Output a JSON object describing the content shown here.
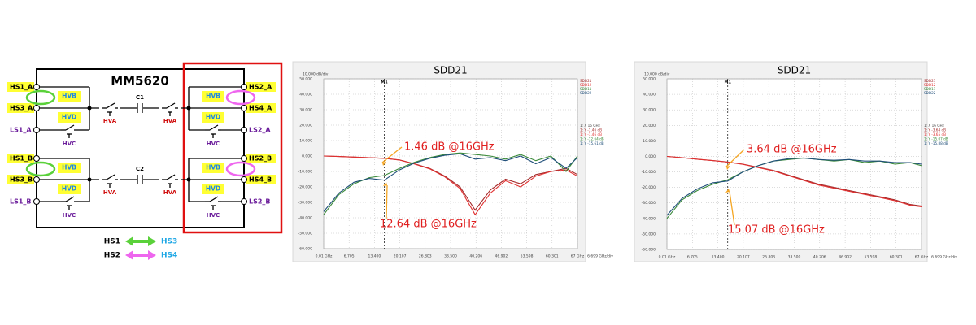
{
  "diagram": {
    "title": "MM5620",
    "left_pins": [
      "HS1_A",
      "HS3_A",
      "LS1_A",
      "HS1_B",
      "HS3_B",
      "LS1_B"
    ],
    "right_pins": [
      "HS2_A",
      "HS4_A",
      "LS2_A",
      "HS2_B",
      "HS4_B",
      "LS2_B"
    ],
    "hvb": [
      "HVB",
      "HVB",
      "HVB",
      "HVB"
    ],
    "hvd": [
      "HVD",
      "HVD",
      "HVD",
      "HVD"
    ],
    "hva": [
      "HVA",
      "HVA",
      "HVA",
      "HVA"
    ],
    "hvc": [
      "HVC",
      "HVC",
      "HVC",
      "HVC"
    ],
    "capacitors": [
      "C1",
      "C2"
    ],
    "legend": [
      {
        "from": "HS1",
        "to": "HS3"
      },
      {
        "from": "HS2",
        "to": "HS4"
      }
    ]
  },
  "chart_data": [
    {
      "type": "line",
      "title": "SDD21",
      "y_scale_label": "10.000 dB/div",
      "x_scale_label": "6.699 GHz/div",
      "x": [
        0.01,
        4,
        8,
        12,
        16,
        20,
        24,
        28,
        32,
        36,
        40,
        44,
        48,
        52,
        56,
        60,
        64,
        67
      ],
      "series": [
        {
          "name": "SDD21",
          "color": "#a52a2a",
          "values": [
            0,
            -0.3,
            -0.7,
            -1.1,
            -1.46,
            -2.5,
            -5,
            -8,
            -13,
            -20,
            -35,
            -22,
            -15,
            -18,
            -12,
            -10,
            -8,
            -12
          ]
        },
        {
          "name": "SDD12",
          "color": "#e03030",
          "values": [
            0,
            -0.3,
            -0.7,
            -1.1,
            -1.46,
            -2.6,
            -5.2,
            -8.3,
            -13.5,
            -21,
            -38,
            -24,
            -16,
            -20,
            -13,
            -10,
            -9,
            -13
          ]
        },
        {
          "name": "SDD11",
          "color": "#3a8a3a",
          "values": [
            -38,
            -25,
            -18,
            -14,
            -12.64,
            -8,
            -4,
            -1,
            1,
            2,
            1,
            0,
            -2,
            1,
            -3,
            0,
            -10,
            0
          ]
        },
        {
          "name": "SDD22",
          "color": "#1f4e79",
          "values": [
            -36,
            -24,
            -17,
            -14.5,
            -15.61,
            -9,
            -4.5,
            -1.5,
            0.5,
            1.5,
            -2,
            -1,
            -3,
            0,
            -5,
            -1,
            -8,
            -1
          ]
        }
      ],
      "xlim": [
        0.01,
        67
      ],
      "ylim": [
        -60,
        50
      ],
      "yticks": [
        {
          "value": 50,
          "label": "50.000"
        },
        {
          "value": 40,
          "label": "40.000"
        },
        {
          "value": 30,
          "label": "30.000"
        },
        {
          "value": 20,
          "label": "20.000"
        },
        {
          "value": 10,
          "label": "10.000"
        },
        {
          "value": 0,
          "label": "0.000"
        },
        {
          "value": -10,
          "label": "-10.000"
        },
        {
          "value": -20,
          "label": "-20.000"
        },
        {
          "value": -30,
          "label": "-30.000"
        },
        {
          "value": -40,
          "label": "-40.000"
        },
        {
          "value": -50,
          "label": "-50.000"
        },
        {
          "value": -60,
          "label": "-60.000"
        }
      ],
      "xticks": [
        {
          "value": 0.01,
          "label": "0.01 GHz"
        },
        6.705,
        {
          "value": 13.4,
          "label": "13.400"
        },
        20.107,
        26.803,
        {
          "value": 33.5,
          "label": "33.500"
        },
        40.206,
        46.902,
        53.598,
        60.301,
        {
          "value": 67,
          "label": "67 GHz"
        }
      ],
      "grid": true,
      "marker": {
        "label": "M1",
        "x": 16
      },
      "marker_readout": [
        "1: X  16 GHz",
        "1: Y  -1.46 dB",
        "1: Y  -1.46 dB",
        "1: Y  -12.64 dB",
        "1: Y  -15.61 dB"
      ],
      "annotations": [
        "1.46 dB @16GHz",
        "12.64 dB @16GHz"
      ]
    },
    {
      "type": "line",
      "title": "SDD21",
      "y_scale_label": "10.000 dB/div",
      "x_scale_label": "6.699 GHz/div",
      "x": [
        0.01,
        4,
        8,
        12,
        16,
        20,
        24,
        28,
        32,
        36,
        40,
        44,
        48,
        52,
        56,
        60,
        64,
        67
      ],
      "series": [
        {
          "name": "SDD21",
          "color": "#a52a2a",
          "values": [
            0,
            -0.8,
            -1.8,
            -2.7,
            -3.64,
            -5,
            -7,
            -9,
            -12,
            -15,
            -18,
            -20,
            -22,
            -24,
            -26,
            -28,
            -31,
            -32
          ]
        },
        {
          "name": "SDD12",
          "color": "#e03030",
          "values": [
            0,
            -0.8,
            -1.8,
            -2.7,
            -3.65,
            -5.1,
            -7.2,
            -9.3,
            -12.4,
            -15.5,
            -18.5,
            -20.5,
            -22.5,
            -24.5,
            -26.5,
            -28.5,
            -31.5,
            -32.5
          ]
        },
        {
          "name": "SDD11",
          "color": "#3a8a3a",
          "values": [
            -40,
            -28,
            -22,
            -18,
            -15.07,
            -10,
            -6,
            -3,
            -2,
            -1,
            -2,
            -3,
            -2,
            -4,
            -3,
            -5,
            -4,
            -6
          ]
        },
        {
          "name": "SDD22",
          "color": "#1f4e79",
          "values": [
            -38,
            -27,
            -21,
            -17,
            -15.88,
            -10,
            -6,
            -3,
            -1.5,
            -1,
            -2,
            -2.5,
            -2,
            -3,
            -3,
            -4,
            -4,
            -5
          ]
        }
      ],
      "xlim": [
        0.01,
        67
      ],
      "ylim": [
        -60,
        50
      ],
      "yticks": [
        {
          "value": 50,
          "label": "50.000"
        },
        {
          "value": 40,
          "label": "40.000"
        },
        {
          "value": 30,
          "label": "30.000"
        },
        {
          "value": 20,
          "label": "20.000"
        },
        {
          "value": 10,
          "label": "10.000"
        },
        {
          "value": 0,
          "label": "0.000"
        },
        {
          "value": -10,
          "label": "-10.000"
        },
        {
          "value": -20,
          "label": "-20.000"
        },
        {
          "value": -30,
          "label": "-30.000"
        },
        {
          "value": -40,
          "label": "-40.000"
        },
        {
          "value": -50,
          "label": "-50.000"
        },
        {
          "value": -60,
          "label": "-60.000"
        }
      ],
      "xticks": [
        {
          "value": 0.01,
          "label": "0.01 GHz"
        },
        6.705,
        {
          "value": 13.4,
          "label": "13.400"
        },
        20.107,
        26.803,
        {
          "value": 33.5,
          "label": "33.500"
        },
        40.206,
        46.902,
        53.598,
        60.301,
        {
          "value": 67,
          "label": "67 GHz"
        }
      ],
      "grid": true,
      "marker": {
        "label": "M1",
        "x": 16
      },
      "marker_readout": [
        "1: X  16 GHz",
        "1: Y  -3.64 dB",
        "1: Y  -3.65 dB",
        "1: Y  -15.07 dB",
        "1: Y  -15.88 dB"
      ],
      "annotations": [
        "3.64 dB @16GHz",
        "15.07 dB @16GHz"
      ]
    }
  ]
}
